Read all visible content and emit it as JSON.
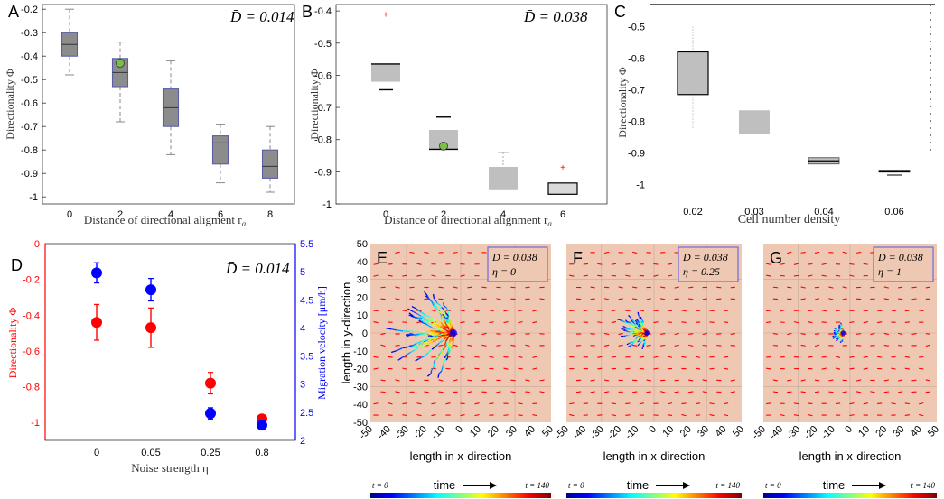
{
  "figure": {
    "colors": {
      "box_gray": "#8c8c8c",
      "box_light": "#bfbfbf",
      "box_edge": "#5b5fa8",
      "marker_green": "#7ac143",
      "red": "#ff0000",
      "blue": "#0000ff",
      "sim_bg": "#efc8b4",
      "sim_border": "#6b6be0"
    }
  },
  "chart_data": [
    {
      "panel": "A",
      "type": "box",
      "annotation": "D̄ = 0.014",
      "xlabel": "Distance of directional aligment r",
      "xlabel_sub": "a",
      "ylabel": "Directionality Φ",
      "categories": [
        "0",
        "2",
        "4",
        "6",
        "8"
      ],
      "ylim": [
        -1.03,
        -0.18
      ],
      "yticks": [
        "-0.2",
        "-0.3",
        "-0.4",
        "-0.5",
        "-0.6",
        "-0.7",
        "-0.8",
        "-0.9",
        "-1"
      ],
      "ytick_values": [
        -0.2,
        -0.3,
        -0.4,
        -0.5,
        -0.6,
        -0.7,
        -0.8,
        -0.9,
        -1.0
      ],
      "boxes": [
        {
          "min": -0.48,
          "q1": -0.4,
          "median": -0.35,
          "q3": -0.3,
          "max": -0.2
        },
        {
          "min": -0.68,
          "q1": -0.53,
          "median": -0.47,
          "q3": -0.41,
          "max": -0.34
        },
        {
          "min": -0.82,
          "q1": -0.7,
          "median": -0.62,
          "q3": -0.54,
          "max": -0.42
        },
        {
          "min": -0.94,
          "q1": -0.86,
          "median": -0.77,
          "q3": -0.74,
          "max": -0.69
        },
        {
          "min": -0.98,
          "q1": -0.92,
          "median": -0.87,
          "q3": -0.8,
          "max": -0.7
        }
      ],
      "marker": {
        "category": "2",
        "value": -0.43
      }
    },
    {
      "panel": "B",
      "type": "box",
      "annotation": "D̄ = 0.038",
      "xlabel": "Distance of directional alignment r",
      "xlabel_sub": "a",
      "ylabel": "Directionality Φ",
      "categories": [
        "0",
        "2",
        "4",
        "6"
      ],
      "ylim": [
        -1.0,
        -0.38
      ],
      "yticks": [
        "-0.4",
        "-0.5",
        "-0.6",
        "-0.7",
        "-0.8",
        "-0.9",
        "-1"
      ],
      "ytick_values": [
        -0.4,
        -0.5,
        -0.6,
        -0.7,
        -0.8,
        -0.9,
        -1.0
      ],
      "boxes": [
        {
          "min": -0.645,
          "q1": -0.62,
          "median": -0.565,
          "q3": -0.565,
          "max": -0.565
        },
        {
          "min": -0.83,
          "q1": -0.83,
          "median": -0.83,
          "q3": -0.77,
          "max": -0.73
        },
        {
          "min": -0.955,
          "q1": -0.955,
          "median": -0.955,
          "q3": -0.885,
          "max": -0.84
        },
        {
          "min": -0.97,
          "q1": -0.97,
          "median": -0.97,
          "q3": -0.935,
          "max": -0.935
        }
      ],
      "outliers": [
        {
          "category": "0",
          "value": -0.41
        },
        {
          "category": "6",
          "value": -0.885
        }
      ],
      "marker": {
        "category": "2",
        "value": -0.82
      }
    },
    {
      "panel": "C",
      "type": "box",
      "annotation": "",
      "xlabel": "Cell number density",
      "ylabel": "Directionality Φ",
      "categories": [
        "0.02",
        "0.03",
        "0.04",
        "0.06"
      ],
      "ylim": [
        -1.05,
        -0.43
      ],
      "yticks": [
        "-0.5",
        "-0.6",
        "-0.7",
        "-0.8",
        "-0.9",
        "-1"
      ],
      "ytick_values": [
        -0.5,
        -0.6,
        -0.7,
        -0.8,
        -0.9,
        -1.0
      ],
      "boxes": [
        {
          "min": -0.82,
          "q1": -0.715,
          "median": -0.715,
          "q3": -0.58,
          "max": -0.5
        },
        {
          "min": -0.84,
          "q1": -0.84,
          "median": -0.84,
          "q3": -0.765,
          "max": -0.765
        },
        {
          "min": -0.935,
          "q1": -0.935,
          "median": -0.925,
          "q3": -0.915,
          "max": -0.91
        },
        {
          "min": -0.97,
          "q1": -0.96,
          "median": -0.958,
          "q3": -0.955,
          "max": -0.95
        }
      ]
    },
    {
      "panel": "D",
      "type": "scatter",
      "annotation": "D̄ = 0.014",
      "xlabel": "Noise strength η",
      "ylabel_left": "Directionality Φ",
      "ylabel_right": "Migration velocity [μm/h]",
      "categories": [
        "0",
        "0.05",
        "0.25",
        "0.8"
      ],
      "ylim_left": [
        -1.1,
        0.0
      ],
      "yticks_left": [
        "0",
        "-0.2",
        "-0.4",
        "-0.6",
        "-0.8",
        "-1"
      ],
      "ytick_values_left": [
        0.0,
        -0.2,
        -0.4,
        -0.6,
        -0.8,
        -1.0
      ],
      "ylim_right": [
        2.0,
        5.5
      ],
      "yticks_right": [
        "5.5",
        "5",
        "4.5",
        "4",
        "3.5",
        "3",
        "2.5",
        "2"
      ],
      "ytick_values_right": [
        5.5,
        5.0,
        4.5,
        4.0,
        3.5,
        3.0,
        2.5,
        2.0
      ],
      "series": [
        {
          "name": "Directionality",
          "axis": "left",
          "color": "#ff0000",
          "values": [
            -0.44,
            -0.47,
            -0.78,
            -0.98
          ],
          "errors": [
            0.1,
            0.11,
            0.06,
            0.02
          ]
        },
        {
          "name": "Migration velocity",
          "axis": "right",
          "color": "#0000ff",
          "values": [
            4.98,
            4.68,
            2.48,
            2.27
          ],
          "errors": [
            0.18,
            0.2,
            0.1,
            0.06
          ]
        }
      ]
    },
    {
      "panel": "E",
      "type": "trajectory",
      "legend_text": [
        "D = 0.038",
        "η = 0"
      ],
      "spread": 1.0,
      "xlabel": "length in x-direction",
      "ylabel": "length in y-direction",
      "xlim": [
        -50,
        50
      ],
      "ylim": [
        -50,
        50
      ],
      "xticks": [
        "-50",
        "-40",
        "-30",
        "-20",
        "-10",
        "0",
        "10",
        "20",
        "30",
        "40",
        "50"
      ],
      "yticks": [
        "50",
        "40",
        "30",
        "20",
        "10",
        "0",
        "-10",
        "-20",
        "-30",
        "-40",
        "-50"
      ],
      "colorbar": {
        "left": "t = 0",
        "mid": "time",
        "right": "t = 140"
      }
    },
    {
      "panel": "F",
      "type": "trajectory",
      "legend_text": [
        "D = 0.038",
        "η = 0.25"
      ],
      "spread": 0.45,
      "xlabel": "length in x-direction",
      "xlim": [
        -50,
        50
      ],
      "ylim": [
        -50,
        50
      ],
      "xticks": [
        "-50",
        "-40",
        "-30",
        "-20",
        "-10",
        "0",
        "10",
        "20",
        "30",
        "40",
        "50"
      ],
      "colorbar": {
        "left": "t = 0",
        "mid": "time",
        "right": "t = 140"
      }
    },
    {
      "panel": "G",
      "type": "trajectory",
      "legend_text": [
        "D = 0.038",
        "η = 1"
      ],
      "spread": 0.18,
      "xlabel": "length in x-direction",
      "xlim": [
        -50,
        50
      ],
      "ylim": [
        -50,
        50
      ],
      "xticks": [
        "-50",
        "-40",
        "-30",
        "-20",
        "-10",
        "0",
        "10",
        "20",
        "30",
        "40",
        "50"
      ],
      "colorbar": {
        "left": "t = 0",
        "mid": "time",
        "right": "t = 140"
      }
    }
  ]
}
